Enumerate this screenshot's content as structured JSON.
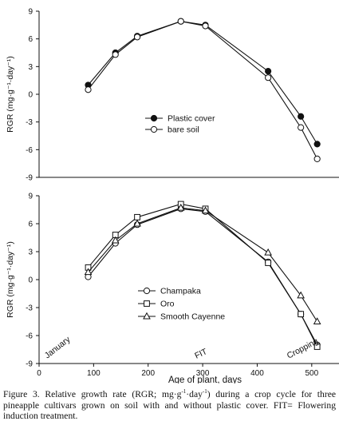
{
  "chart_data": [
    {
      "type": "line",
      "panel": "top",
      "ylabel": "RGR (mg·g⁻¹·day⁻¹)",
      "ylim": [
        -9,
        9
      ],
      "yticks": [
        9,
        6,
        3,
        0,
        -3,
        -6,
        -9
      ],
      "xlim": [
        0,
        550
      ],
      "legend_position": "center-right",
      "series": [
        {
          "name": "Plastic cover",
          "marker": "filled-circle",
          "x": [
            90,
            140,
            180,
            260,
            305,
            420,
            480,
            510
          ],
          "y": [
            1.0,
            4.5,
            6.3,
            7.9,
            7.5,
            2.5,
            -2.4,
            -5.4
          ]
        },
        {
          "name": "bare soil",
          "marker": "open-circle",
          "x": [
            90,
            140,
            180,
            260,
            305,
            420,
            480,
            510
          ],
          "y": [
            0.5,
            4.3,
            6.2,
            7.9,
            7.4,
            1.8,
            -3.6,
            -7.0
          ]
        }
      ]
    },
    {
      "type": "line",
      "panel": "bottom",
      "xlabel": "Age of plant, days",
      "ylabel": "RGR (mg·g⁻¹·day⁻¹)",
      "ylim": [
        -9,
        9
      ],
      "yticks": [
        9,
        6,
        3,
        0,
        -3,
        -6,
        -9
      ],
      "xlim": [
        0,
        550
      ],
      "xticks": [
        0,
        100,
        200,
        300,
        400,
        500
      ],
      "legend_position": "lower-left",
      "series": [
        {
          "name": "Champaka",
          "marker": "open-circle",
          "x": [
            90,
            140,
            180,
            260,
            305,
            420,
            480,
            510
          ],
          "y": [
            0.3,
            3.9,
            5.9,
            7.6,
            7.3,
            1.9,
            -3.7,
            -7.0
          ]
        },
        {
          "name": "Oro",
          "marker": "open-square",
          "x": [
            90,
            140,
            180,
            260,
            305,
            420,
            480,
            510
          ],
          "y": [
            1.3,
            4.8,
            6.7,
            8.1,
            7.6,
            1.8,
            -3.7,
            -7.2
          ]
        },
        {
          "name": "Smooth Cayenne",
          "marker": "open-triangle",
          "x": [
            90,
            140,
            180,
            260,
            305,
            420,
            480,
            510
          ],
          "y": [
            0.8,
            4.2,
            6.0,
            7.7,
            7.4,
            2.9,
            -1.7,
            -4.5
          ]
        }
      ],
      "annotations": [
        {
          "text": "January",
          "x": 12
        },
        {
          "text": "FIT",
          "x": 300
        },
        {
          "text": "Cropping",
          "x": 490
        }
      ]
    }
  ],
  "caption": {
    "prefix": "Figure 3. Relative growth rate (RGR; mg·g",
    "sup1": "-1",
    "mid": "·day",
    "sup2": "-1",
    "rest": ") during a crop cycle for three pineapple cultivars grown on soil with and without plastic cover. FIT= Flowering induction treatment."
  }
}
